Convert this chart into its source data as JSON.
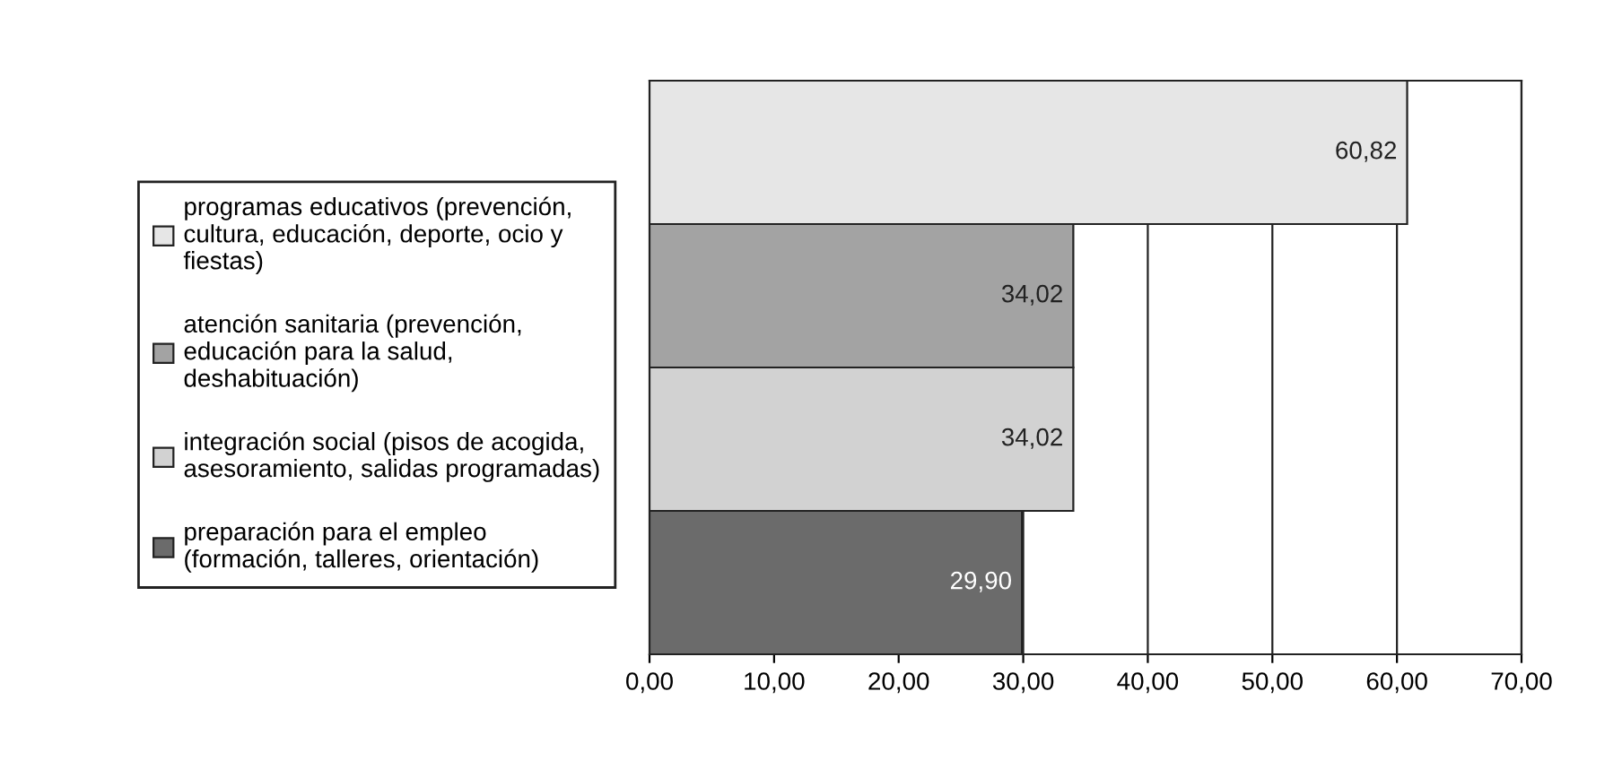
{
  "chart_data": {
    "type": "bar",
    "orientation": "horizontal",
    "categories": [
      null,
      null,
      null,
      null
    ],
    "series": [
      {
        "name": "programas educativos (prevención,\ncultura, educación, deporte, ocio y\nfiestas)",
        "color": "#e6e6e6",
        "values": [
          60.82,
          null,
          null,
          null
        ],
        "value_labels": [
          "60,82",
          null,
          null,
          null
        ]
      },
      {
        "name": "atención sanitaria (prevención,\neducación para la salud,\ndeshabituación)",
        "color": "#a3a3a3",
        "values": [
          null,
          34.02,
          null,
          null
        ],
        "value_labels": [
          null,
          "34,02",
          null,
          null
        ]
      },
      {
        "name": "integración social (pisos de acogida,\nasesoramiento, salidas programadas)",
        "color": "#d2d2d2",
        "values": [
          null,
          null,
          34.02,
          null
        ],
        "value_labels": [
          null,
          null,
          "34,02",
          null
        ]
      },
      {
        "name": "preparación para el empleo\n(formación, talleres, orientación)",
        "color": "#6b6b6b",
        "values": [
          null,
          null,
          null,
          29.9
        ],
        "value_labels": [
          null,
          null,
          null,
          "29,90"
        ]
      }
    ],
    "xlim": [
      0,
      70
    ],
    "xticks": [
      {
        "value": 0,
        "label": "0,00"
      },
      {
        "value": 10,
        "label": "10,00"
      },
      {
        "value": 20,
        "label": "20,00"
      },
      {
        "value": 30,
        "label": "30,00"
      },
      {
        "value": 40,
        "label": "40,00"
      },
      {
        "value": 50,
        "label": "50,00"
      },
      {
        "value": 60,
        "label": "60,00"
      },
      {
        "value": 70,
        "label": "70,00"
      }
    ],
    "grid": "x",
    "legend": "left",
    "tick_labels": "x"
  }
}
